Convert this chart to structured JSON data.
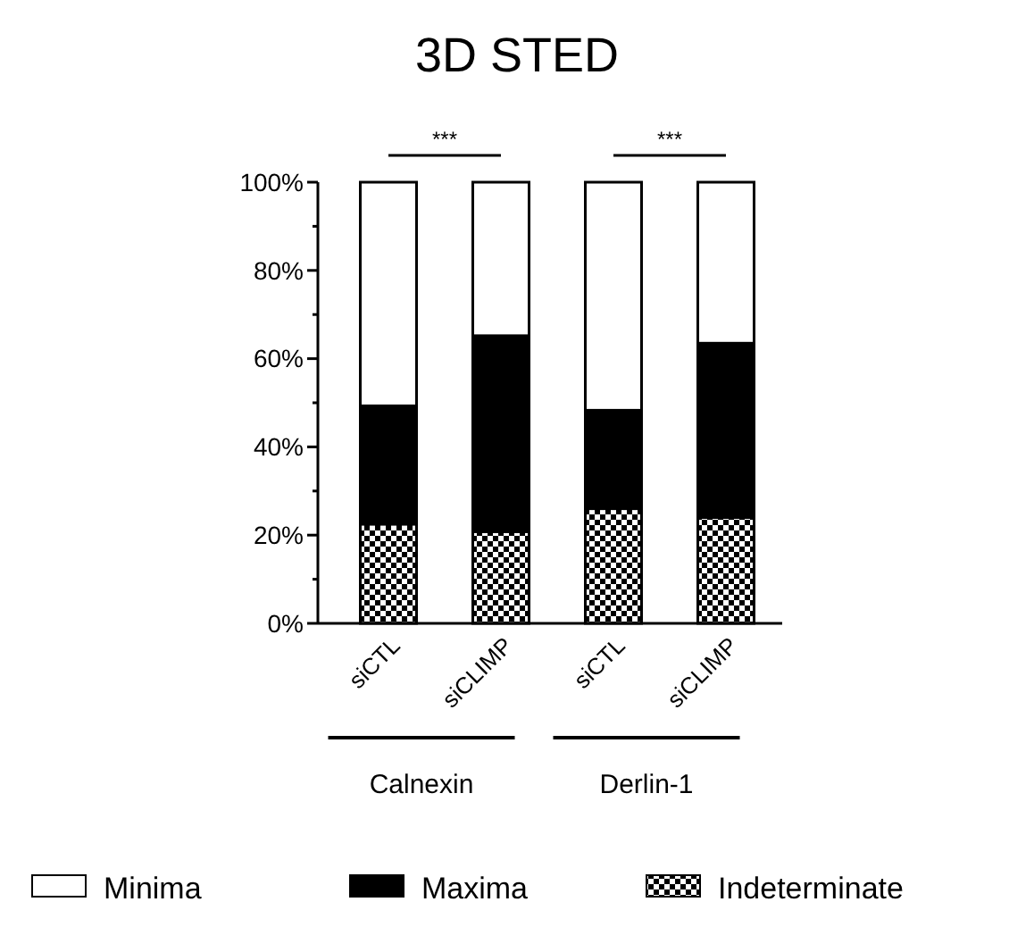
{
  "chart_data": {
    "type": "bar",
    "title": "3D STED",
    "stacked": true,
    "categories": [
      "siCTL",
      "siCLIMP",
      "siCTL",
      "siCLIMP"
    ],
    "series": [
      {
        "name": "Indeterminate",
        "color": "#000000",
        "values": [
          22.5,
          20.8,
          26,
          24
        ]
      },
      {
        "name": "Maxima",
        "color": "#000000",
        "values": [
          26.8,
          44.4,
          22.3,
          39.5
        ]
      },
      {
        "name": "Minima",
        "color": "#ffffff",
        "values": [
          50.7,
          34.8,
          51.7,
          36.5
        ]
      }
    ],
    "ylim": [
      0,
      100
    ],
    "yticks": [
      {
        "value": 0,
        "label": "0%"
      },
      {
        "value": 10,
        "label": null
      },
      {
        "value": 20,
        "label": "20%"
      },
      {
        "value": 30,
        "label": null
      },
      {
        "value": 40,
        "label": "40%"
      },
      {
        "value": 50,
        "label": null
      },
      {
        "value": 60,
        "label": "60%"
      },
      {
        "value": 70,
        "label": null
      },
      {
        "value": 80,
        "label": "80%"
      },
      {
        "value": 90,
        "label": null
      },
      {
        "value": 100,
        "label": "100%"
      }
    ],
    "annotations": [
      "***",
      "***",
      "Calnexin",
      "Derlin-1"
    ],
    "legend": "bottom",
    "grid": false
  }
}
